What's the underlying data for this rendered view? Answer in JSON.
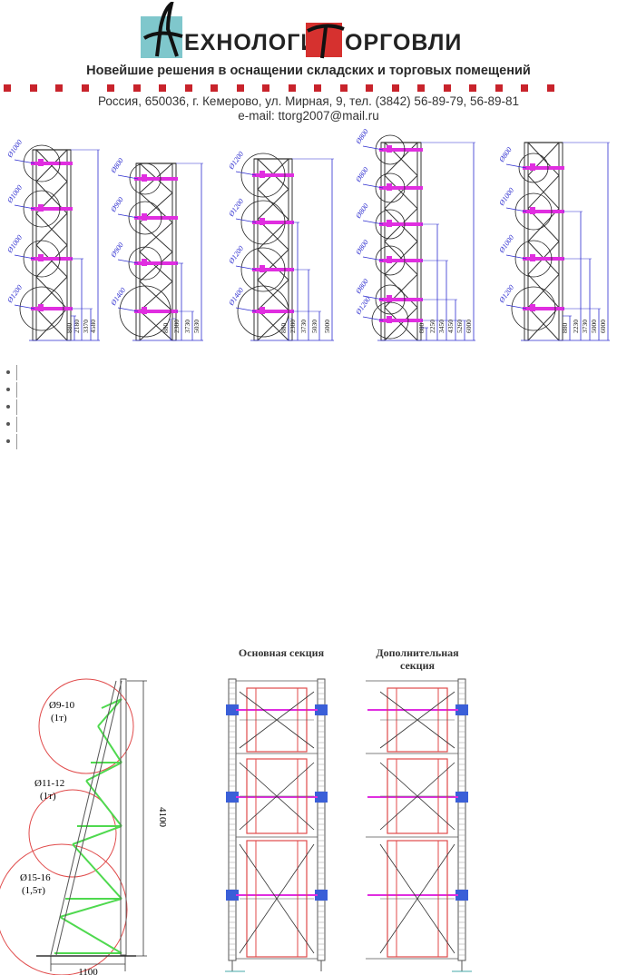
{
  "header": {
    "logo_word1": "ЕХНОЛОГИИ",
    "logo_word2": "ОРГОВЛИ",
    "tagline": "Новейшие решения в оснащении складских и торговых помещений",
    "address": "Россия, 650036, г. Кемерово, ул. Мирная, 9, тел. (3842) 56-89-79, 56-89-81",
    "email": "e-mail: ttorg2007@mail.ru"
  },
  "diagrams_top": [
    {
      "circles": [
        "Ø1000",
        "Ø1000",
        "Ø1000",
        "Ø1200"
      ],
      "dims": [
        "4580",
        "3370",
        "2180",
        "880"
      ]
    },
    {
      "circles": [
        "Ø800",
        "Ø900",
        "Ø900",
        "Ø1400"
      ],
      "dims": [
        "5030",
        "3730",
        "2380",
        "880"
      ]
    },
    {
      "circles": [
        "Ø1200",
        "Ø1200",
        "Ø1200",
        "Ø1400"
      ],
      "dims": [
        "5000",
        "5030",
        "3730",
        "2380",
        "880"
      ]
    },
    {
      "circles": [
        "Ø800",
        "Ø800",
        "Ø800",
        "Ø800",
        "Ø800",
        "Ø1200"
      ],
      "dims": [
        "6000",
        "5260",
        "4350",
        "3450",
        "2250",
        "880"
      ]
    },
    {
      "circles": [
        "Ø800",
        "Ø1000",
        "Ø1000",
        "Ø1200"
      ],
      "dims": [
        "6000",
        "5000",
        "3730",
        "2230",
        "880"
      ]
    }
  ],
  "bullets_count": 5,
  "side_view": {
    "height_label": "4100",
    "width_label": "1100",
    "loads": [
      {
        "diameter": "Ø9-10",
        "weight": "(1т)"
      },
      {
        "diameter": "Ø11-12",
        "weight": "(1т)"
      },
      {
        "diameter": "Ø15-16",
        "weight": "(1,5т)"
      }
    ]
  },
  "front_views": {
    "main_title": "Основная секция",
    "extra_title_line1": "Дополнительная",
    "extra_title_line2": "секция"
  },
  "colors": {
    "accent_red": "#c8232b",
    "logo_teal": "#7fc7cc",
    "dim_blue": "#2d2dcf",
    "bracket_magenta": "#e02ee0",
    "circle_red": "#e04a4a",
    "brace_green": "#4fd94f"
  }
}
